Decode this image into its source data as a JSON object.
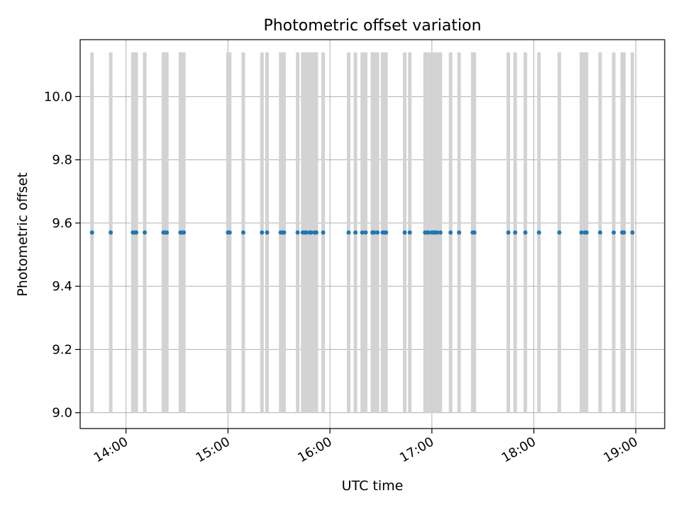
{
  "chart_data": {
    "type": "scatter",
    "title": "Photometric offset variation",
    "xlabel": "UTC time",
    "ylabel": "Photometric offset",
    "x_unit": "UTC hh:mm",
    "xlim": [
      "13:33",
      "19:17"
    ],
    "ylim": [
      8.95,
      10.18
    ],
    "x_ticks": [
      "14:00",
      "15:00",
      "16:00",
      "17:00",
      "18:00",
      "19:00"
    ],
    "y_ticks": [
      9.0,
      9.2,
      9.4,
      9.6,
      9.8,
      10.0
    ],
    "y_tick_labels": [
      "9.0",
      "9.2",
      "9.4",
      "9.6",
      "9.8",
      "10.0"
    ],
    "grid": true,
    "errorbar_range": [
      9.0,
      10.14
    ],
    "colors": {
      "points": "#1f77b4",
      "errorbars": "#d3d3d3",
      "grid": "#b0b0b0"
    },
    "series": [
      {
        "x": [
          "13:40",
          "13:51",
          "14:04",
          "14:05",
          "14:06",
          "14:11",
          "14:22",
          "14:23",
          "14:24",
          "14:32",
          "14:33",
          "14:34",
          "15:00",
          "15:01",
          "15:09",
          "15:20",
          "15:23",
          "15:31",
          "15:32",
          "15:33",
          "15:41",
          "15:44",
          "15:45",
          "15:46",
          "15:48",
          "15:49",
          "15:51",
          "15:52",
          "15:56",
          "16:11",
          "16:15",
          "16:19",
          "16:21",
          "16:25",
          "16:26",
          "16:28",
          "16:31",
          "16:32",
          "16:33",
          "16:44",
          "16:47",
          "16:56",
          "16:57",
          "16:58",
          "17:00",
          "17:01",
          "17:02",
          "17:03",
          "17:05",
          "17:11",
          "17:16",
          "17:24",
          "17:25",
          "17:45",
          "17:49",
          "17:55",
          "18:03",
          "18:15",
          "18:28",
          "18:30",
          "18:31",
          "18:39",
          "18:47",
          "18:52",
          "18:53",
          "18:58"
        ],
        "y": [
          9.57,
          9.57,
          9.57,
          9.57,
          9.57,
          9.57,
          9.57,
          9.57,
          9.57,
          9.57,
          9.57,
          9.57,
          9.57,
          9.57,
          9.57,
          9.57,
          9.57,
          9.57,
          9.57,
          9.57,
          9.57,
          9.57,
          9.57,
          9.57,
          9.57,
          9.57,
          9.57,
          9.57,
          9.57,
          9.57,
          9.57,
          9.57,
          9.57,
          9.57,
          9.57,
          9.57,
          9.57,
          9.57,
          9.57,
          9.57,
          9.57,
          9.57,
          9.57,
          9.57,
          9.57,
          9.57,
          9.57,
          9.57,
          9.57,
          9.57,
          9.57,
          9.57,
          9.57,
          9.57,
          9.57,
          9.57,
          9.57,
          9.57,
          9.57,
          9.57,
          9.57,
          9.57,
          9.57,
          9.57,
          9.57,
          9.57
        ]
      }
    ]
  }
}
